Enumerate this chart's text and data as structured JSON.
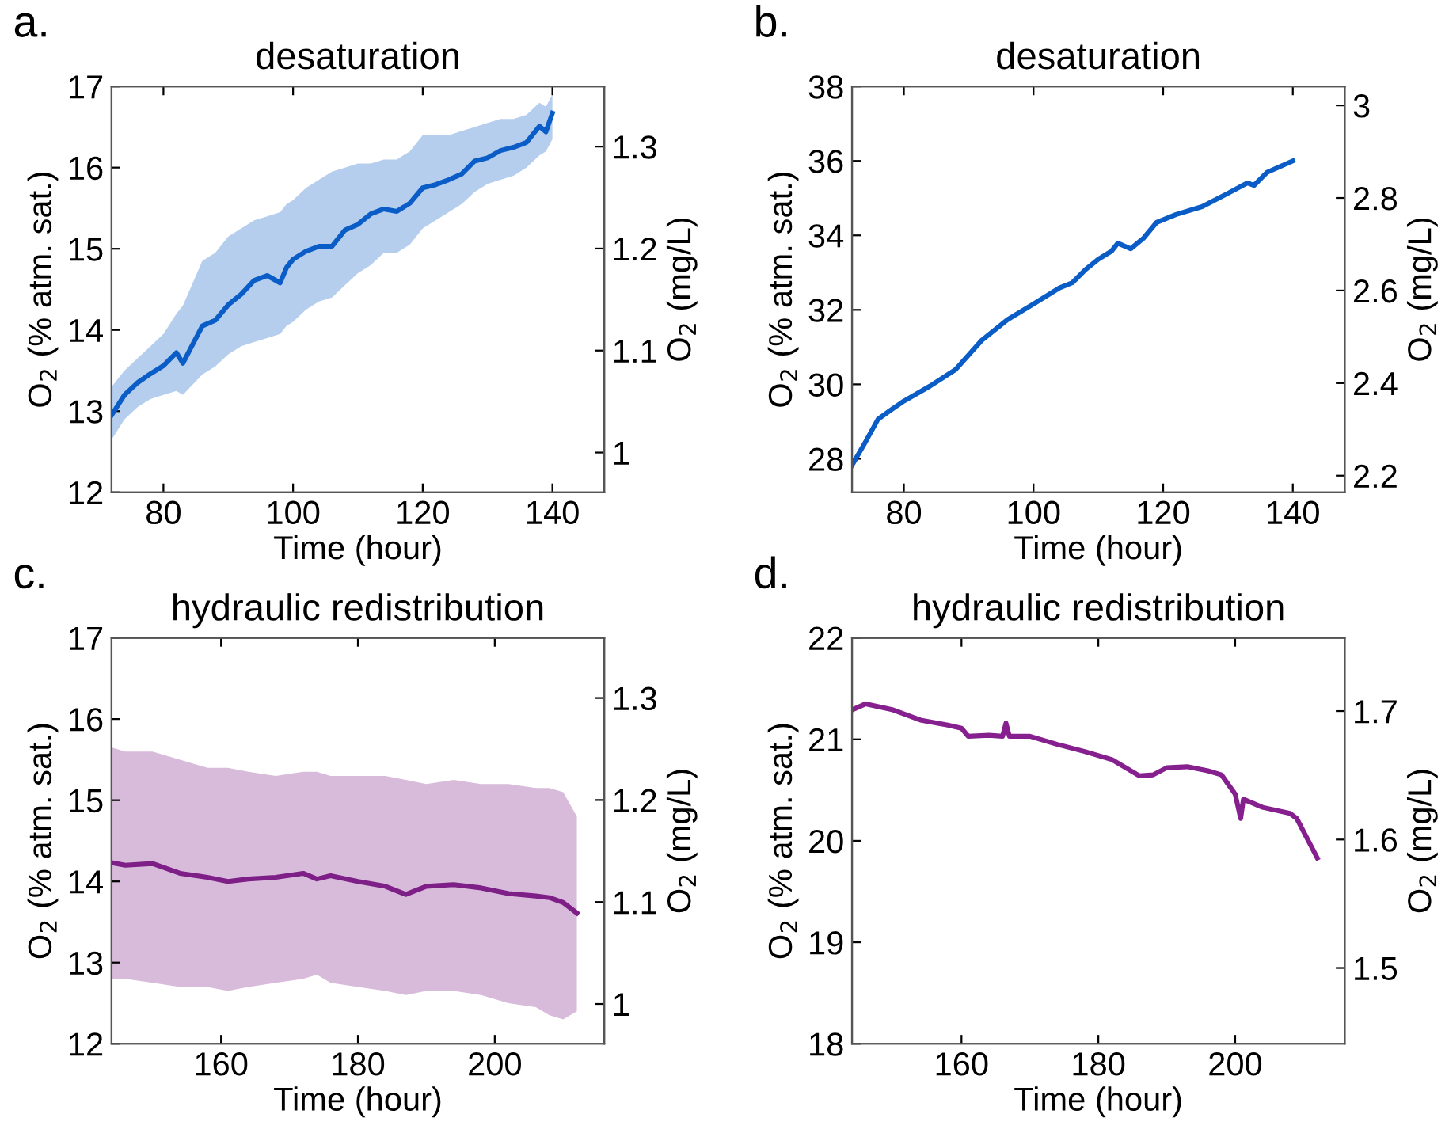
{
  "chart_data": [
    {
      "type": "line",
      "title": "desaturation",
      "annotations": [
        "a."
      ],
      "xlabel": "Time (hour)",
      "ylabel": "O$_{2}$ (% atm. sat.)",
      "y2label": "O$_{2}$ (mg/L)",
      "xlim": [
        72,
        148
      ],
      "xticks": [
        80,
        100,
        120,
        140
      ],
      "ylim": [
        12,
        17
      ],
      "yticks": [
        12,
        13,
        14,
        15,
        16,
        17
      ],
      "y2lim": [
        0.961,
        1.359
      ],
      "y2ticks": [
        1,
        1.1,
        1.2,
        1.3
      ],
      "grid": false,
      "series": [
        {
          "color": "#0a5cc7",
          "x": [
            72,
            74,
            76,
            78,
            80,
            82,
            83,
            86,
            88,
            90,
            92,
            94,
            96,
            98,
            99,
            100,
            102,
            104,
            106,
            108,
            110,
            112,
            114,
            116,
            118,
            120,
            122,
            124,
            126,
            128,
            130,
            132,
            134,
            136,
            138,
            139,
            140
          ],
          "values": [
            12.95,
            13.2,
            13.35,
            13.46,
            13.56,
            13.72,
            13.59,
            14.05,
            14.12,
            14.31,
            14.44,
            14.61,
            14.67,
            14.58,
            14.77,
            14.87,
            14.97,
            15.03,
            15.03,
            15.23,
            15.3,
            15.43,
            15.49,
            15.46,
            15.56,
            15.75,
            15.79,
            15.85,
            15.92,
            16.08,
            16.12,
            16.21,
            16.25,
            16.31,
            16.51,
            16.44,
            16.67
          ],
          "lower": [
            12.65,
            12.9,
            13.05,
            13.15,
            13.2,
            13.25,
            13.2,
            13.45,
            13.55,
            13.7,
            13.8,
            13.85,
            13.9,
            13.95,
            14.05,
            14.1,
            14.25,
            14.35,
            14.4,
            14.55,
            14.7,
            14.8,
            14.95,
            14.95,
            15.05,
            15.25,
            15.35,
            15.45,
            15.55,
            15.7,
            15.8,
            15.85,
            15.9,
            16.0,
            16.15,
            16.2,
            16.35
          ],
          "upper": [
            13.3,
            13.5,
            13.65,
            13.8,
            13.95,
            14.2,
            14.3,
            14.85,
            14.95,
            15.15,
            15.25,
            15.35,
            15.4,
            15.45,
            15.55,
            15.6,
            15.75,
            15.85,
            15.95,
            16.0,
            16.05,
            16.05,
            16.1,
            16.1,
            16.2,
            16.4,
            16.4,
            16.4,
            16.45,
            16.5,
            16.55,
            16.6,
            16.6,
            16.65,
            16.8,
            16.75,
            16.9
          ]
        }
      ]
    },
    {
      "type": "line",
      "title": "desaturation",
      "annotations": [
        "b."
      ],
      "xlabel": "Time (hour)",
      "ylabel": "O$_{2}$ (% atm. sat.)",
      "y2label": "O$_{2}$ (mg/L)",
      "xlim": [
        72,
        148
      ],
      "xticks": [
        80,
        100,
        120,
        140
      ],
      "ylim": [
        27.1,
        38
      ],
      "yticks": [
        28,
        30,
        32,
        34,
        36,
        38
      ],
      "y2lim": [
        2.164,
        3.041
      ],
      "y2ticks": [
        2.2,
        2.4,
        2.6,
        2.8,
        3
      ],
      "grid": false,
      "series": [
        {
          "color": "#0a5cc7",
          "x": [
            72,
            74,
            76,
            78,
            80,
            84,
            88,
            92,
            96,
            100,
            104,
            106,
            108,
            110,
            112,
            113,
            115,
            117,
            119,
            122,
            126,
            130,
            133,
            134,
            136,
            140
          ],
          "values": [
            27.83,
            28.43,
            29.06,
            29.31,
            29.55,
            29.95,
            30.4,
            31.18,
            31.74,
            32.16,
            32.59,
            32.73,
            33.08,
            33.36,
            33.57,
            33.79,
            33.64,
            33.93,
            34.35,
            34.56,
            34.77,
            35.13,
            35.41,
            35.34,
            35.69,
            36.0
          ]
        }
      ]
    },
    {
      "type": "line",
      "title": "hydraulic redistribution",
      "annotations": [
        "c."
      ],
      "xlabel": "Time (hour)",
      "ylabel": "O$_{2}$ (% atm. sat.)",
      "y2label": "O$_{2}$ (mg/L)",
      "xlim": [
        144,
        216
      ],
      "xticks": [
        160,
        180,
        200
      ],
      "ylim": [
        12,
        17
      ],
      "yticks": [
        12,
        13,
        14,
        15,
        16,
        17
      ],
      "y2lim": [
        0.961,
        1.359
      ],
      "y2ticks": [
        1,
        1.1,
        1.2,
        1.3
      ],
      "grid": false,
      "series": [
        {
          "color": "#7d1f87",
          "x": [
            144,
            146,
            150,
            154,
            158,
            161,
            164,
            168,
            172,
            174,
            176,
            180,
            184,
            187,
            190,
            194,
            198,
            202,
            206,
            208,
            210,
            212
          ],
          "values": [
            14.23,
            14.2,
            14.22,
            14.1,
            14.05,
            14.0,
            14.03,
            14.05,
            14.1,
            14.03,
            14.07,
            14.0,
            13.94,
            13.84,
            13.94,
            13.96,
            13.92,
            13.85,
            13.82,
            13.8,
            13.74,
            13.61
          ],
          "lower": [
            12.8,
            12.8,
            12.75,
            12.7,
            12.7,
            12.65,
            12.7,
            12.75,
            12.8,
            12.85,
            12.75,
            12.7,
            12.65,
            12.6,
            12.65,
            12.65,
            12.6,
            12.5,
            12.45,
            12.35,
            12.3,
            12.4
          ],
          "upper": [
            15.65,
            15.6,
            15.6,
            15.5,
            15.4,
            15.4,
            15.35,
            15.3,
            15.35,
            15.35,
            15.3,
            15.3,
            15.3,
            15.25,
            15.2,
            15.25,
            15.2,
            15.2,
            15.15,
            15.15,
            15.1,
            14.8
          ]
        }
      ]
    },
    {
      "type": "line",
      "title": "hydraulic redistribution",
      "annotations": [
        "d."
      ],
      "xlabel": "Time (hour)",
      "ylabel": "O$_{2}$ (% atm. sat.)",
      "y2label": "O$_{2}$ (mg/L)",
      "xlim": [
        144,
        216
      ],
      "xticks": [
        160,
        180,
        200
      ],
      "ylim": [
        18,
        22
      ],
      "yticks": [
        18,
        19,
        20,
        21,
        22
      ],
      "y2lim": [
        1.441,
        1.757
      ],
      "y2ticks": [
        1.5,
        1.6,
        1.7
      ],
      "grid": false,
      "series": [
        {
          "color": "#86208f",
          "x": [
            144,
            146,
            150,
            154,
            158,
            160,
            161,
            164,
            166,
            166.5,
            167,
            170,
            174,
            178,
            182,
            186,
            188,
            190,
            193,
            196,
            198,
            200,
            200.8,
            201.2,
            204,
            208,
            209,
            212
          ],
          "values": [
            21.29,
            21.35,
            21.29,
            21.19,
            21.14,
            21.11,
            21.03,
            21.04,
            21.03,
            21.16,
            21.03,
            21.03,
            20.95,
            20.88,
            20.8,
            20.64,
            20.65,
            20.72,
            20.73,
            20.69,
            20.65,
            20.46,
            20.22,
            20.41,
            20.33,
            20.27,
            20.22,
            19.83
          ]
        }
      ]
    }
  ]
}
